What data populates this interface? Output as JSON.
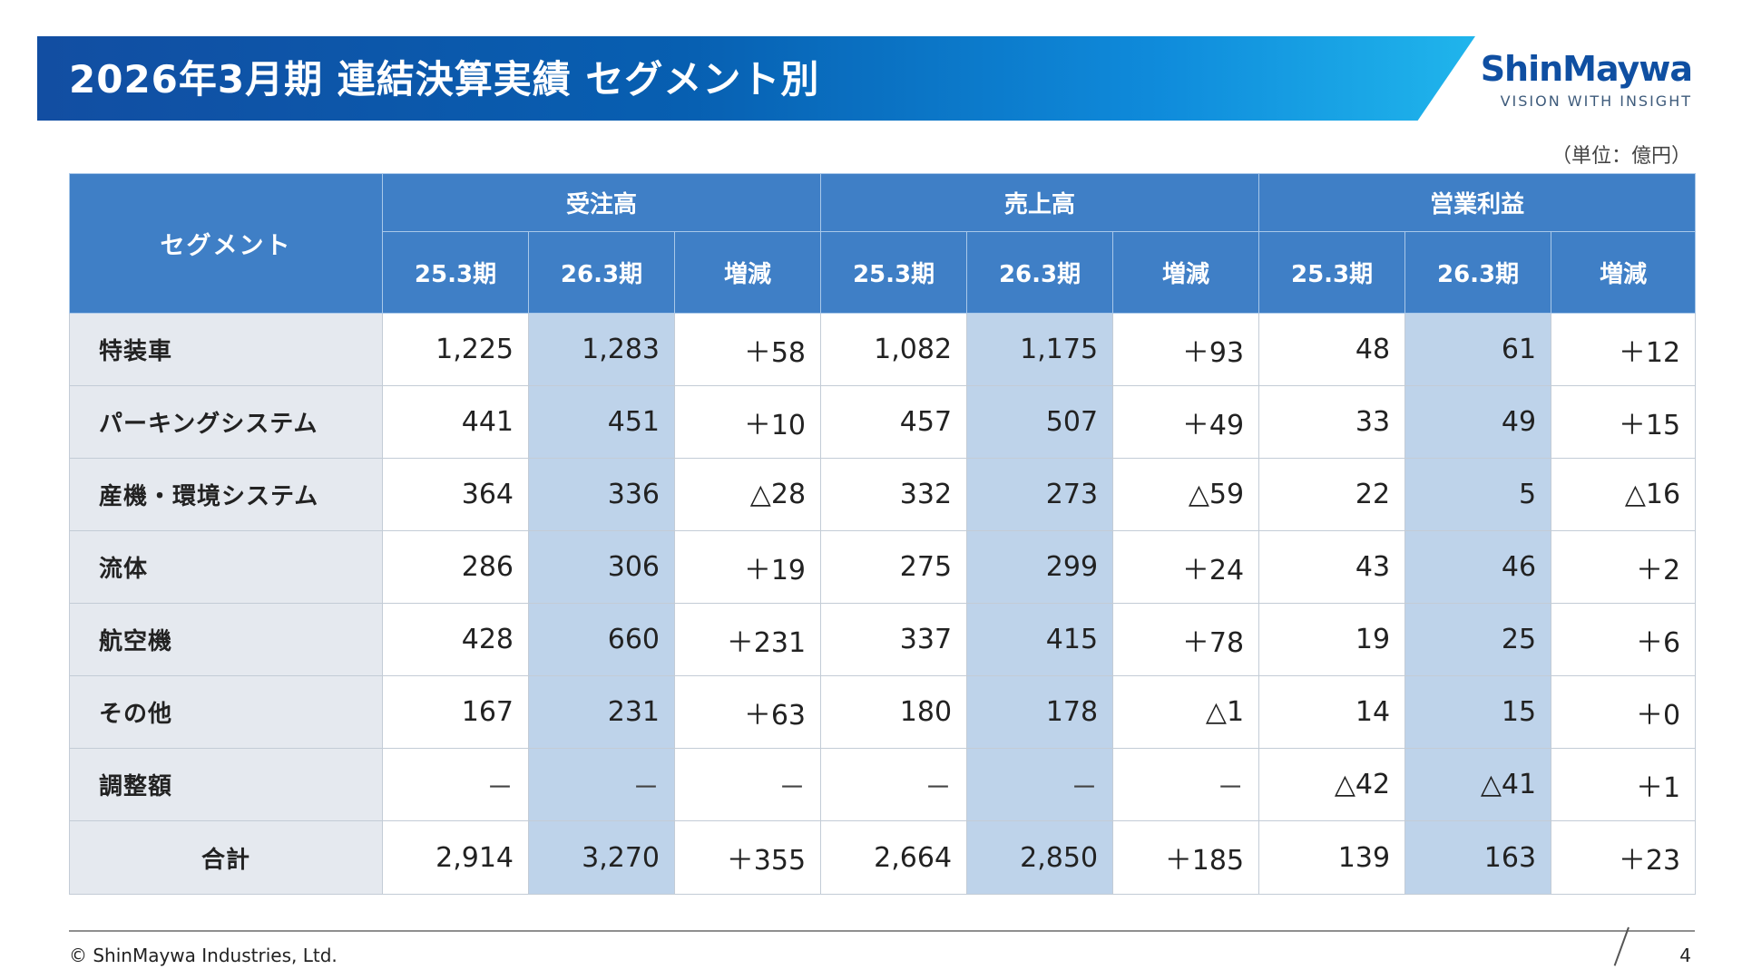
{
  "header": {
    "title": "2026年3月期 連結決算実績 セグメント別",
    "brand_name": "ShinMaywa",
    "brand_tagline": "VISION WITH INSIGHT"
  },
  "unit_label": "（単位：億円）",
  "table": {
    "segment_header": "セグメント",
    "groups": [
      "受注高",
      "売上高",
      "営業利益"
    ],
    "periods": [
      "25.3期",
      "26.3期",
      "増減",
      "25.3期",
      "26.3期",
      "増減",
      "25.3期",
      "26.3期",
      "増減"
    ],
    "rows": [
      {
        "label": "特装車",
        "values": [
          "1,225",
          "1,283",
          "＋58",
          "1,082",
          "1,175",
          "＋93",
          "48",
          "61",
          "＋12"
        ]
      },
      {
        "label": "パーキングシステム",
        "values": [
          "441",
          "451",
          "＋10",
          "457",
          "507",
          "＋49",
          "33",
          "49",
          "＋15"
        ]
      },
      {
        "label": "産機・環境システム",
        "values": [
          "364",
          "336",
          "△28",
          "332",
          "273",
          "△59",
          "22",
          "5",
          "△16"
        ]
      },
      {
        "label": "流体",
        "values": [
          "286",
          "306",
          "＋19",
          "275",
          "299",
          "＋24",
          "43",
          "46",
          "＋2"
        ]
      },
      {
        "label": "航空機",
        "values": [
          "428",
          "660",
          "＋231",
          "337",
          "415",
          "＋78",
          "19",
          "25",
          "＋6"
        ]
      },
      {
        "label": "その他",
        "values": [
          "167",
          "231",
          "＋63",
          "180",
          "178",
          "△1",
          "14",
          "15",
          "＋0"
        ]
      },
      {
        "label": "調整額",
        "values": [
          "－",
          "－",
          "－",
          "－",
          "－",
          "－",
          "△42",
          "△41",
          "＋1"
        ]
      },
      {
        "label": "合計",
        "values": [
          "2,914",
          "3,270",
          "＋355",
          "2,664",
          "2,850",
          "＋185",
          "139",
          "163",
          "＋23"
        ]
      }
    ]
  },
  "footer": {
    "copyright": "© ShinMaywa Industries, Ltd.",
    "page_number": "4"
  },
  "colors": {
    "header_blue": "#3f7fc6",
    "current_period_column": "#bed3ea",
    "row_label_background": "#e5e9ef",
    "title_banner_start": "#124ea2",
    "title_banner_end": "#20b5ec"
  }
}
